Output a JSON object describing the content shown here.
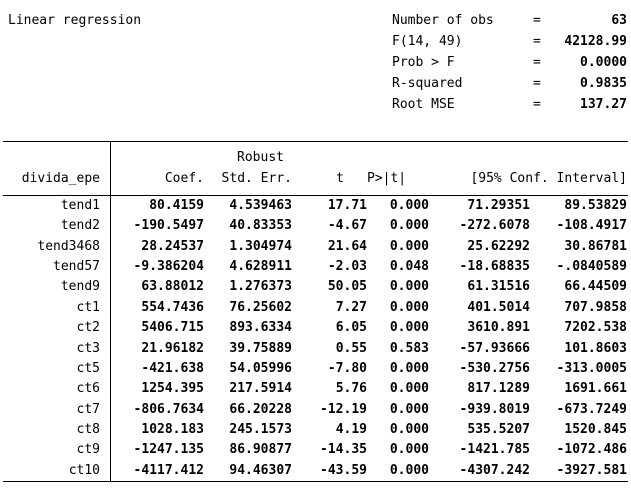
{
  "title": "Linear regression",
  "stats": [
    {
      "label": "Number of obs",
      "eq": "=",
      "value": "63"
    },
    {
      "label": "F(14, 49)",
      "eq": "=",
      "value": "42128.99"
    },
    {
      "label": "Prob > F",
      "eq": "=",
      "value": "0.0000"
    },
    {
      "label": "R-squared",
      "eq": "=",
      "value": "0.9835"
    },
    {
      "label": "Root MSE",
      "eq": "=",
      "value": "137.27"
    }
  ],
  "table": {
    "depvar": "divida_epe",
    "robust_label": "Robust",
    "columns": [
      "Coef.",
      "Std. Err.",
      "t",
      "P>|t|"
    ],
    "ci_header": "[95% Conf. Interval]",
    "rows": [
      {
        "var": "tend1",
        "coef": "80.4159",
        "se": "4.539463",
        "t": "17.71",
        "p": "0.000",
        "lo": "71.29351",
        "hi": "89.53829"
      },
      {
        "var": "tend2",
        "coef": "-190.5497",
        "se": "40.83353",
        "t": "-4.67",
        "p": "0.000",
        "lo": "-272.6078",
        "hi": "-108.4917"
      },
      {
        "var": "tend3468",
        "coef": "28.24537",
        "se": "1.304974",
        "t": "21.64",
        "p": "0.000",
        "lo": "25.62292",
        "hi": "30.86781"
      },
      {
        "var": "tend57",
        "coef": "-9.386204",
        "se": "4.628911",
        "t": "-2.03",
        "p": "0.048",
        "lo": "-18.68835",
        "hi": "-.0840589"
      },
      {
        "var": "tend9",
        "coef": "63.88012",
        "se": "1.276373",
        "t": "50.05",
        "p": "0.000",
        "lo": "61.31516",
        "hi": "66.44509"
      },
      {
        "var": "ct1",
        "coef": "554.7436",
        "se": "76.25602",
        "t": "7.27",
        "p": "0.000",
        "lo": "401.5014",
        "hi": "707.9858"
      },
      {
        "var": "ct2",
        "coef": "5406.715",
        "se": "893.6334",
        "t": "6.05",
        "p": "0.000",
        "lo": "3610.891",
        "hi": "7202.538"
      },
      {
        "var": "ct3",
        "coef": "21.96182",
        "se": "39.75889",
        "t": "0.55",
        "p": "0.583",
        "lo": "-57.93666",
        "hi": "101.8603"
      },
      {
        "var": "ct5",
        "coef": "-421.638",
        "se": "54.05996",
        "t": "-7.80",
        "p": "0.000",
        "lo": "-530.2756",
        "hi": "-313.0005"
      },
      {
        "var": "ct6",
        "coef": "1254.395",
        "se": "217.5914",
        "t": "5.76",
        "p": "0.000",
        "lo": "817.1289",
        "hi": "1691.661"
      },
      {
        "var": "ct7",
        "coef": "-806.7634",
        "se": "66.20228",
        "t": "-12.19",
        "p": "0.000",
        "lo": "-939.8019",
        "hi": "-673.7249"
      },
      {
        "var": "ct8",
        "coef": "1028.183",
        "se": "245.1573",
        "t": "4.19",
        "p": "0.000",
        "lo": "535.5207",
        "hi": "1520.845"
      },
      {
        "var": "ct9",
        "coef": "-1247.135",
        "se": "86.90877",
        "t": "-14.35",
        "p": "0.000",
        "lo": "-1421.785",
        "hi": "-1072.486"
      },
      {
        "var": "ct10",
        "coef": "-4117.412",
        "se": "94.46307",
        "t": "-43.59",
        "p": "0.000",
        "lo": "-4307.242",
        "hi": "-3927.581"
      }
    ]
  },
  "colors": {
    "text": "#000000",
    "background": "#ffffff",
    "rule": "#000000"
  }
}
